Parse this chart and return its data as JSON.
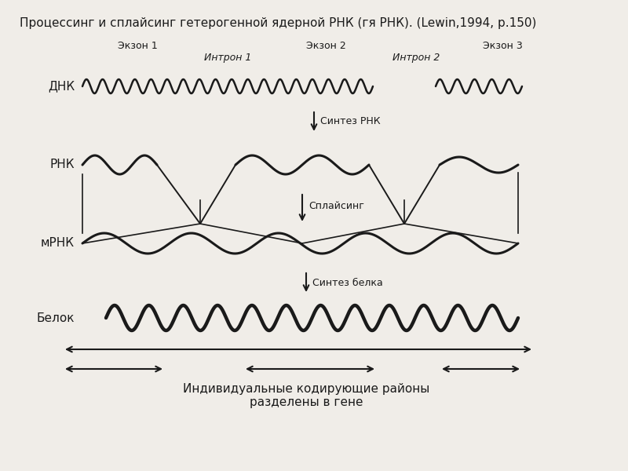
{
  "title": "Процессинг и сплайсинг гетерогенной ядерной РНК (гя РНК). (Lewin,1994, р.150)",
  "title_fontsize": 11,
  "bg_color": "#f0ede8",
  "text_color": "#1a1a1a",
  "label_dna": "ДНК",
  "label_rna": "РНК",
  "label_mrna": "мРНК",
  "label_protein": "Белок",
  "label_exon1": "Экзон 1",
  "label_exon2": "Экзон 2",
  "label_exon3": "Экзон 3",
  "label_intron1": "Интрон 1",
  "label_intron2": "Интрон 2",
  "label_synthesis_rna": "Синтез РНК",
  "label_splicing": "Сплайсинг",
  "label_synthesis_protein": "Синтез белка",
  "label_bottom": "Индивидуальные кодирующие районы\nразделены в гене",
  "line_color": "#1a1a1a",
  "arrow_color": "#1a1a1a"
}
